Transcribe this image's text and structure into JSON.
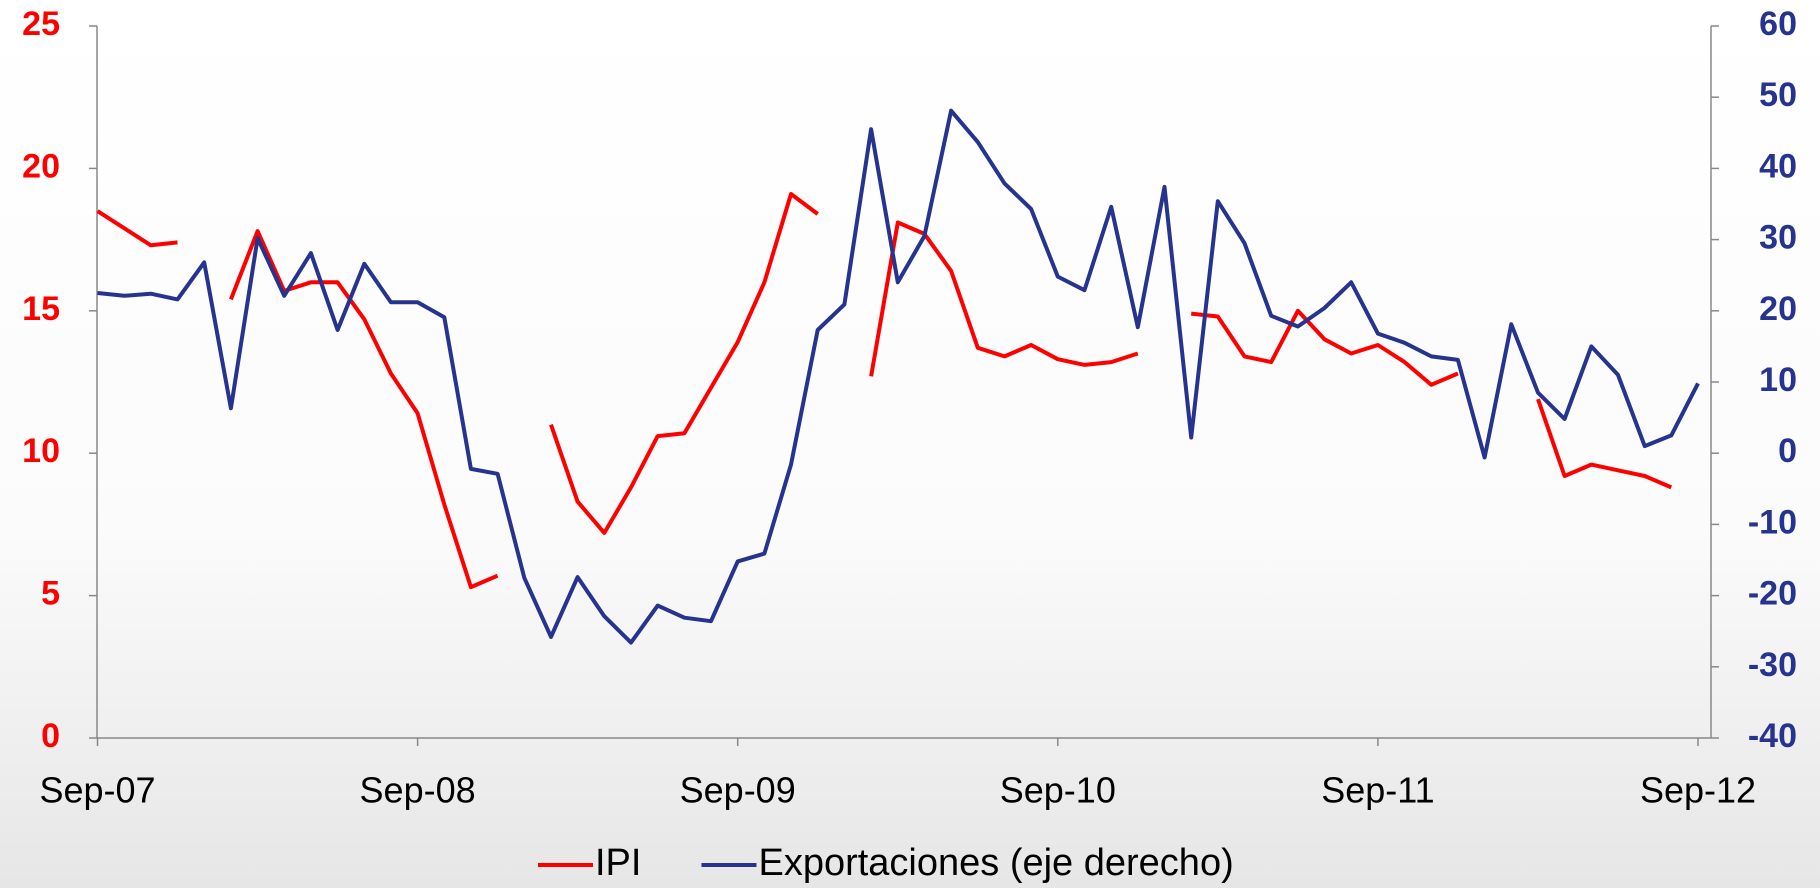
{
  "chart_data": {
    "type": "line",
    "categories": [
      "Sep-07",
      null,
      null,
      null,
      null,
      null,
      null,
      null,
      null,
      null,
      null,
      null,
      "Sep-08",
      null,
      null,
      null,
      null,
      null,
      null,
      null,
      null,
      null,
      null,
      null,
      "Sep-09",
      null,
      null,
      null,
      null,
      null,
      null,
      null,
      null,
      null,
      null,
      null,
      "Sep-10",
      null,
      null,
      null,
      null,
      null,
      null,
      null,
      null,
      null,
      null,
      null,
      "Sep-11",
      null,
      null,
      null,
      null,
      null,
      null,
      null,
      null,
      null,
      null,
      null,
      "Sep-12"
    ],
    "series": [
      {
        "name": "IPI",
        "color": "#ff0000",
        "axis": "y",
        "values": [
          18.5,
          17.9,
          17.3,
          17.4,
          null,
          15.4,
          17.8,
          15.7,
          16.0,
          16.0,
          14.7,
          12.8,
          11.4,
          8.2,
          5.3,
          5.7,
          null,
          11.0,
          8.3,
          7.2,
          8.8,
          10.6,
          10.7,
          12.3,
          13.9,
          16.0,
          19.1,
          18.4,
          null,
          12.7,
          18.1,
          17.7,
          16.4,
          13.7,
          13.4,
          13.8,
          13.3,
          13.1,
          13.2,
          13.5,
          null,
          14.9,
          14.8,
          13.4,
          13.2,
          15.0,
          14.0,
          13.5,
          13.8,
          13.2,
          12.4,
          12.8,
          null,
          null,
          11.9,
          9.2,
          9.6,
          9.4,
          9.2,
          8.8,
          null
        ]
      },
      {
        "name": "Exportaciones (eje derecho)",
        "color": "#26338f",
        "axis": "y2",
        "values": [
          22.5,
          22.1,
          22.4,
          21.6,
          26.8,
          6.3,
          30.2,
          22.1,
          28.1,
          17.3,
          26.6,
          21.2,
          21.2,
          19.1,
          -2.2,
          -2.9,
          -17.5,
          -25.8,
          -17.4,
          -22.9,
          -26.6,
          -21.4,
          -23.1,
          -23.6,
          -15.2,
          -14.1,
          -1.6,
          17.3,
          20.9,
          45.5,
          24.0,
          30.5,
          48.1,
          43.7,
          37.9,
          34.3,
          24.8,
          22.9,
          34.6,
          17.7,
          37.4,
          2.2,
          35.4,
          29.5,
          19.3,
          17.8,
          20.4,
          24.0,
          16.8,
          15.5,
          13.6,
          13.1,
          -0.6,
          18.1,
          8.5,
          4.8,
          15.0,
          11.0,
          1.0,
          2.5,
          9.8
        ]
      }
    ],
    "ylim": [
      0,
      25
    ],
    "yticks": [
      0,
      5,
      10,
      15,
      20,
      25
    ],
    "y2lim": [
      -40,
      60
    ],
    "y2ticks": [
      -40,
      -30,
      -20,
      -10,
      0,
      10,
      20,
      30,
      40,
      50,
      60
    ],
    "ytick_color": "#ff0000",
    "y2tick_color": "#26338f",
    "legend": "bottom"
  }
}
